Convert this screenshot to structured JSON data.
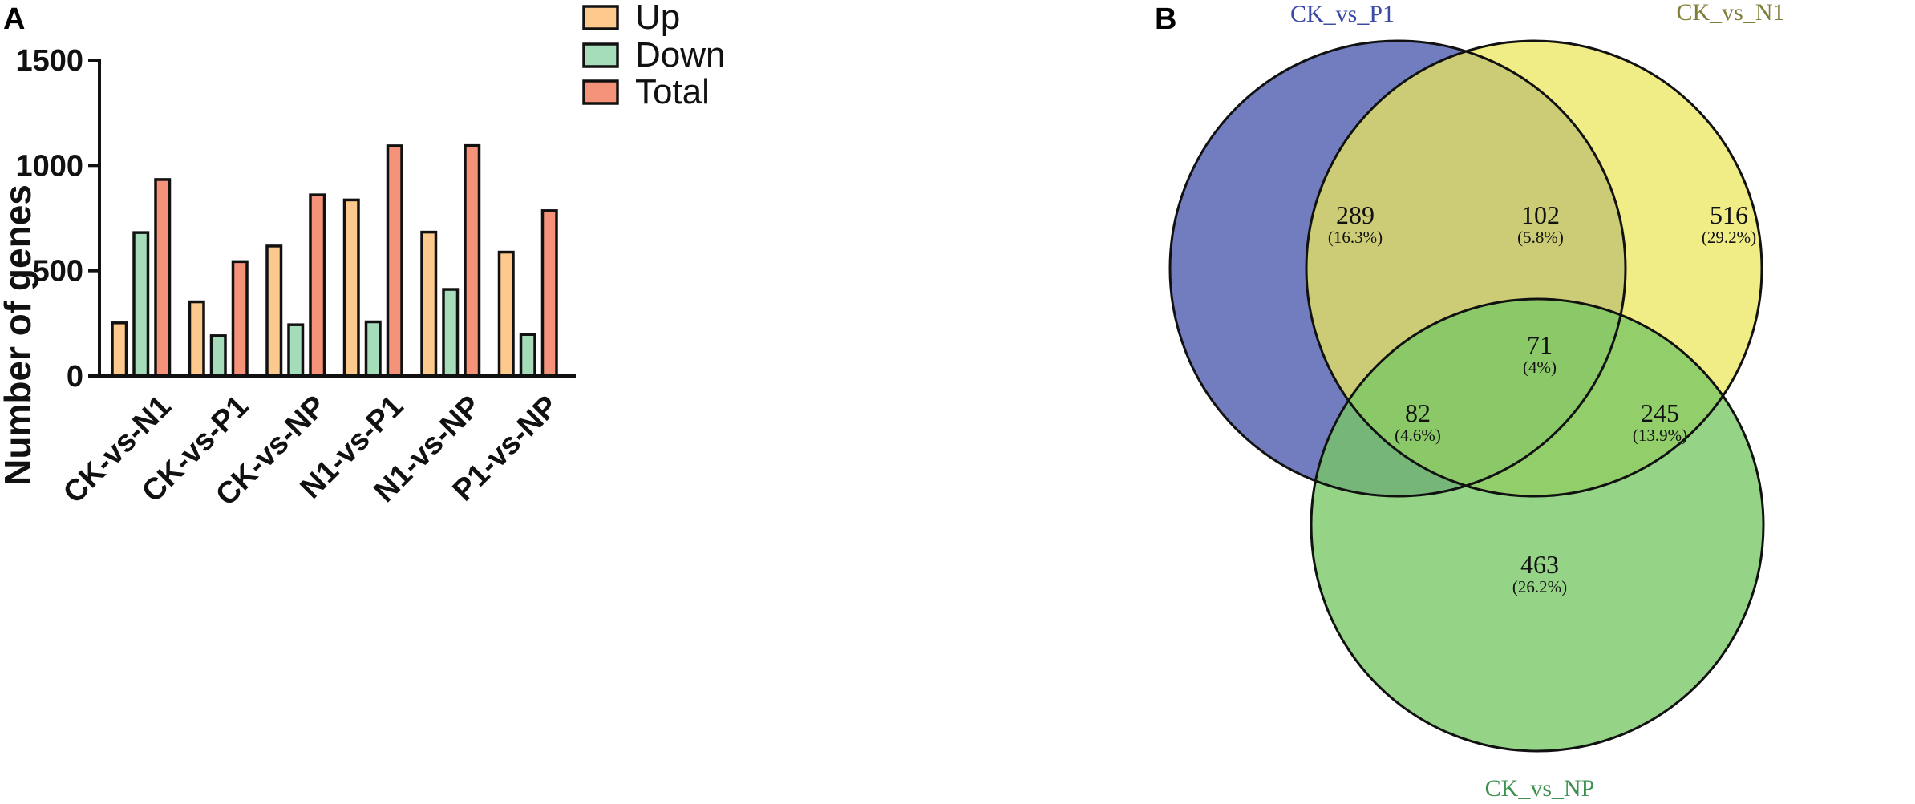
{
  "panel_a": {
    "letter": "A"
  },
  "panel_b": {
    "letter": "B"
  },
  "colors": {
    "up": "#FDC98C",
    "down": "#A5DDBB",
    "total": "#F4937A",
    "axis": "#111111"
  },
  "chart_data": [
    {
      "type": "bar",
      "title": "",
      "xlabel": "",
      "ylabel": "Number of genes",
      "ylim": [
        0,
        1500
      ],
      "yticks": [
        0,
        500,
        1000,
        1500
      ],
      "categories": [
        "CK-vs-N1",
        "CK-vs-P1",
        "CK-vs-NP",
        "N1-vs-P1",
        "N1-vs-NP",
        "P1-vs-NP"
      ],
      "series": [
        {
          "name": "Up",
          "color": "#FDC98C",
          "values": [
            252,
            352,
            617,
            836,
            683,
            588
          ]
        },
        {
          "name": "Down",
          "color": "#A5DDBB",
          "values": [
            681,
            191,
            243,
            257,
            411,
            197
          ]
        },
        {
          "name": "Total",
          "color": "#F4937A",
          "values": [
            933,
            543,
            860,
            1093,
            1094,
            785
          ]
        }
      ],
      "legend_placement": "top-right"
    },
    {
      "type": "venn",
      "sets": [
        {
          "name": "CK_vs_P1",
          "color": "#4D5DAE",
          "title_color": "#3B4BA5"
        },
        {
          "name": "CK_vs_N1",
          "color": "#EBE75E",
          "title_color": "#7F7F3B"
        },
        {
          "name": "CK_vs_NP",
          "color": "#77C664",
          "title_color": "#3C9050"
        }
      ],
      "regions": [
        {
          "key": "p1_only",
          "count": "289",
          "pct": "(16.3%)"
        },
        {
          "key": "p1_n1",
          "count": "102",
          "pct": "(5.8%)"
        },
        {
          "key": "n1_only",
          "count": "516",
          "pct": "(29.2%)"
        },
        {
          "key": "all",
          "count": "71",
          "pct": "(4%)"
        },
        {
          "key": "p1_np",
          "count": "82",
          "pct": "(4.6%)"
        },
        {
          "key": "n1_np",
          "count": "245",
          "pct": "(13.9%)"
        },
        {
          "key": "np_only",
          "count": "463",
          "pct": "(26.2%)"
        }
      ]
    }
  ]
}
